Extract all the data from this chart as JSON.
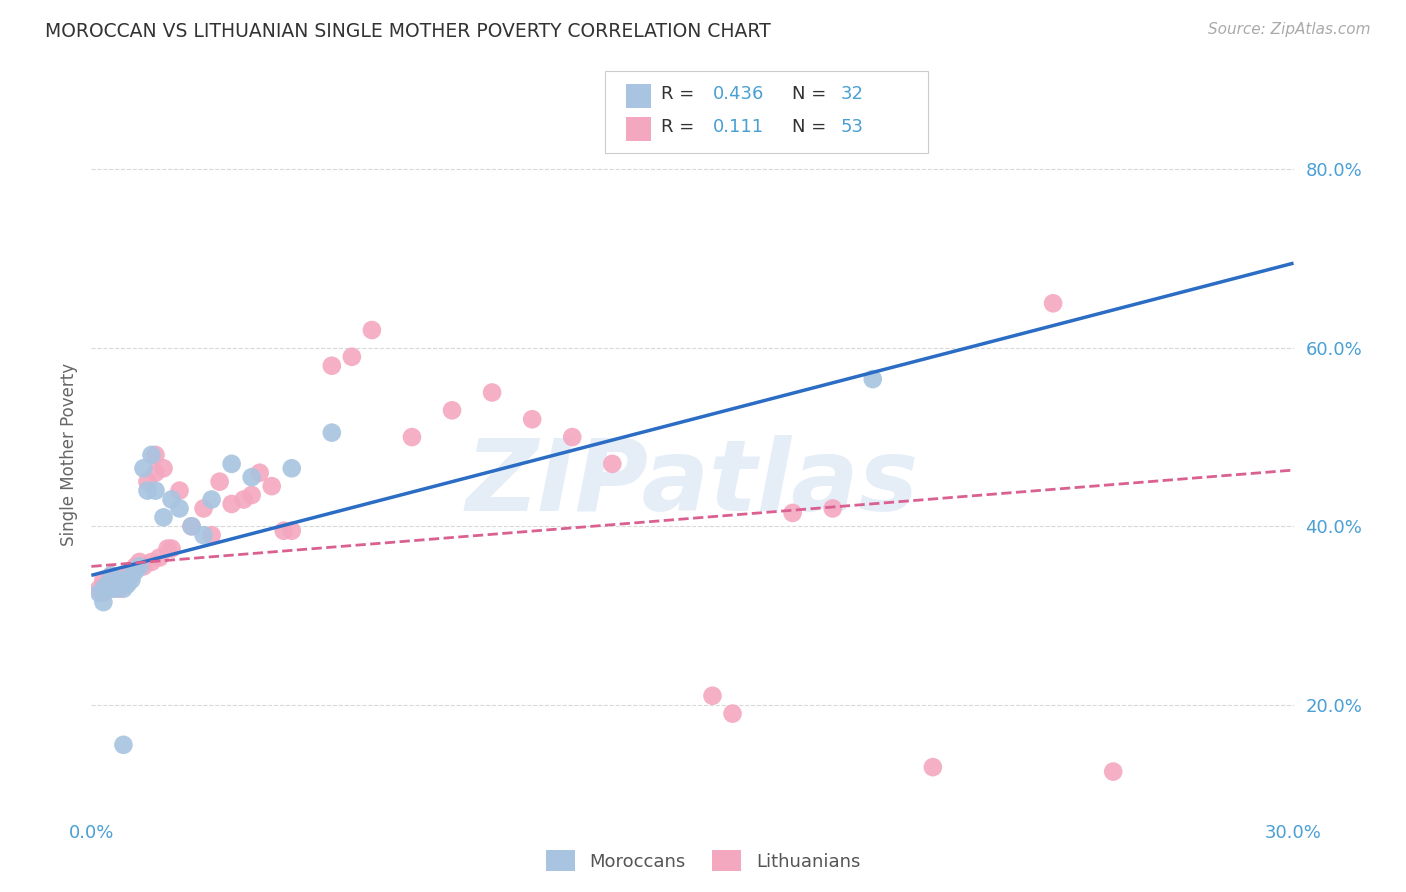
{
  "title": "MOROCCAN VS LITHUANIAN SINGLE MOTHER POVERTY CORRELATION CHART",
  "source": "Source: ZipAtlas.com",
  "ylabel": "Single Mother Poverty",
  "x_min": 0.0,
  "x_max": 0.3,
  "y_min": 0.08,
  "y_max": 0.88,
  "x_ticks": [
    0.0,
    0.05,
    0.1,
    0.15,
    0.2,
    0.25,
    0.3
  ],
  "x_tick_labels": [
    "0.0%",
    "",
    "",
    "",
    "",
    "",
    "30.0%"
  ],
  "y_ticks": [
    0.2,
    0.4,
    0.6,
    0.8
  ],
  "y_tick_labels": [
    "20.0%",
    "40.0%",
    "60.0%",
    "80.0%"
  ],
  "moroccans_color": "#a8c4e0",
  "lithuanians_color": "#f4a8c0",
  "moroccan_line_color": "#2b6cc4",
  "lithuanian_line_color": "#d96090",
  "moroccans_R": "0.436",
  "moroccans_N": "32",
  "lithuanians_R": "0.111",
  "lithuanians_N": "53",
  "moroccan_line_x0": 0.0,
  "moroccan_line_y0": 0.345,
  "moroccan_line_x1": 0.3,
  "moroccan_line_y1": 0.695,
  "lithuanian_line_x0": 0.0,
  "lithuanian_line_y0": 0.355,
  "lithuanian_line_x1": 0.3,
  "lithuanian_line_y1": 0.463,
  "moroccans_x": [
    0.002,
    0.003,
    0.003,
    0.004,
    0.005,
    0.005,
    0.006,
    0.007,
    0.007,
    0.008,
    0.008,
    0.009,
    0.01,
    0.01,
    0.011,
    0.012,
    0.013,
    0.014,
    0.015,
    0.016,
    0.018,
    0.02,
    0.022,
    0.025,
    0.028,
    0.03,
    0.035,
    0.04,
    0.05,
    0.06,
    0.195,
    0.008
  ],
  "moroccans_y": [
    0.325,
    0.315,
    0.33,
    0.335,
    0.33,
    0.345,
    0.33,
    0.335,
    0.34,
    0.33,
    0.335,
    0.335,
    0.34,
    0.345,
    0.35,
    0.355,
    0.465,
    0.44,
    0.48,
    0.44,
    0.41,
    0.43,
    0.42,
    0.4,
    0.39,
    0.43,
    0.47,
    0.455,
    0.465,
    0.505,
    0.565,
    0.155
  ],
  "lithuanians_x": [
    0.002,
    0.003,
    0.003,
    0.004,
    0.005,
    0.005,
    0.006,
    0.007,
    0.007,
    0.008,
    0.008,
    0.009,
    0.01,
    0.01,
    0.011,
    0.012,
    0.013,
    0.014,
    0.015,
    0.016,
    0.016,
    0.017,
    0.018,
    0.019,
    0.02,
    0.022,
    0.025,
    0.028,
    0.03,
    0.032,
    0.035,
    0.038,
    0.04,
    0.042,
    0.045,
    0.048,
    0.05,
    0.06,
    0.065,
    0.07,
    0.08,
    0.09,
    0.1,
    0.11,
    0.12,
    0.13,
    0.155,
    0.16,
    0.175,
    0.185,
    0.21,
    0.24,
    0.255
  ],
  "lithuanians_y": [
    0.33,
    0.325,
    0.34,
    0.335,
    0.33,
    0.345,
    0.335,
    0.33,
    0.34,
    0.335,
    0.34,
    0.345,
    0.345,
    0.35,
    0.355,
    0.36,
    0.355,
    0.45,
    0.36,
    0.46,
    0.48,
    0.365,
    0.465,
    0.375,
    0.375,
    0.44,
    0.4,
    0.42,
    0.39,
    0.45,
    0.425,
    0.43,
    0.435,
    0.46,
    0.445,
    0.395,
    0.395,
    0.58,
    0.59,
    0.62,
    0.5,
    0.53,
    0.55,
    0.52,
    0.5,
    0.47,
    0.21,
    0.19,
    0.415,
    0.42,
    0.13,
    0.65,
    0.125
  ],
  "watermark": "ZIPatlas",
  "background_color": "#ffffff",
  "grid_color": "#d8d8d8",
  "tick_color": "#4a9fd5"
}
